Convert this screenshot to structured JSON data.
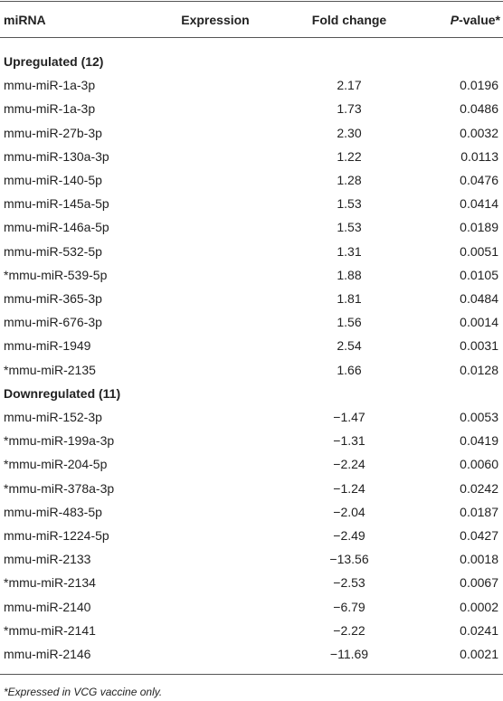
{
  "header": {
    "mirna": "miRNA",
    "expression": "Expression",
    "fold_change": "Fold change",
    "p_value_italic": "P",
    "p_value_rest": "-value*"
  },
  "groups": [
    {
      "label": "Upregulated (12)",
      "rows": [
        [
          "mmu-miR-1a-3p",
          "2.17",
          "0.0196"
        ],
        [
          "mmu-miR-1a-3p",
          "1.73",
          "0.0486"
        ],
        [
          "mmu-miR-27b-3p",
          "2.30",
          "0.0032"
        ],
        [
          "mmu-miR-130a-3p",
          "1.22",
          "0.0113"
        ],
        [
          "mmu-miR-140-5p",
          "1.28",
          "0.0476"
        ],
        [
          "mmu-miR-145a-5p",
          "1.53",
          "0.0414"
        ],
        [
          "mmu-miR-146a-5p",
          "1.53",
          "0.0189"
        ],
        [
          "mmu-miR-532-5p",
          "1.31",
          "0.0051"
        ],
        [
          "*mmu-miR-539-5p",
          "1.88",
          "0.0105"
        ],
        [
          "mmu-miR-365-3p",
          "1.81",
          "0.0484"
        ],
        [
          "mmu-miR-676-3p",
          "1.56",
          "0.0014"
        ],
        [
          "mmu-miR-1949",
          "2.54",
          "0.0031"
        ],
        [
          "*mmu-miR-2135",
          "1.66",
          "0.0128"
        ]
      ]
    },
    {
      "label": "Downregulated (11)",
      "rows": [
        [
          "mmu-miR-152-3p",
          "−1.47",
          "0.0053"
        ],
        [
          "*mmu-miR-199a-3p",
          "−1.31",
          "0.0419"
        ],
        [
          "*mmu-miR-204-5p",
          "−2.24",
          "0.0060"
        ],
        [
          "*mmu-miR-378a-3p",
          "−1.24",
          "0.0242"
        ],
        [
          "mmu-miR-483-5p",
          "−2.04",
          "0.0187"
        ],
        [
          "mmu-miR-1224-5p",
          "−2.49",
          "0.0427"
        ],
        [
          "mmu-miR-2133",
          "−13.56",
          "0.0018"
        ],
        [
          "*mmu-miR-2134",
          "−2.53",
          "0.0067"
        ],
        [
          "mmu-miR-2140",
          "−6.79",
          "0.0002"
        ],
        [
          "*mmu-miR-2141",
          "−2.22",
          "0.0241"
        ],
        [
          "mmu-miR-2146",
          "−11.69",
          "0.0021"
        ]
      ]
    }
  ],
  "footnote": "*Expressed in VCG vaccine only."
}
